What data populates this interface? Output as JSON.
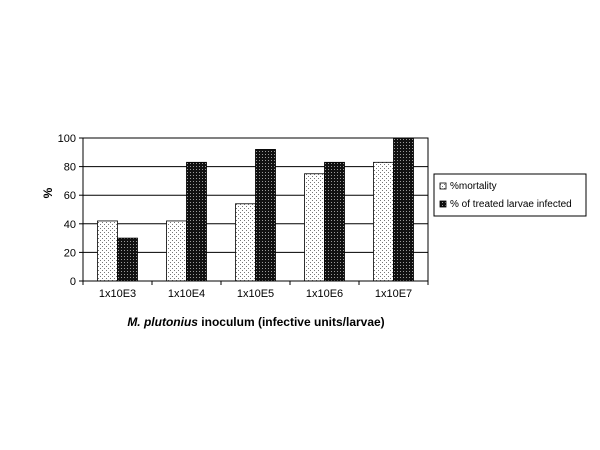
{
  "chart_data": {
    "type": "bar",
    "categories": [
      "1x10E3",
      "1x10E4",
      "1x10E5",
      "1x10E6",
      "1x10E7"
    ],
    "series": [
      {
        "name": "%mortality",
        "values": [
          42,
          42,
          54,
          75,
          83
        ],
        "pattern": "light-dotted",
        "color": "#ffffff"
      },
      {
        "name": "% of treated larvae infected",
        "values": [
          30,
          83,
          92,
          83,
          100
        ],
        "pattern": "dark-dotted",
        "color": "#222222"
      }
    ],
    "ylabel": "%",
    "xlabel_italic": "M. plutonius",
    "xlabel_rest": " inoculum (infective units/larvae)",
    "ylim": [
      0,
      100
    ],
    "yticks": [
      0,
      20,
      40,
      60,
      80,
      100
    ],
    "grid": true,
    "legend_position": "right"
  }
}
